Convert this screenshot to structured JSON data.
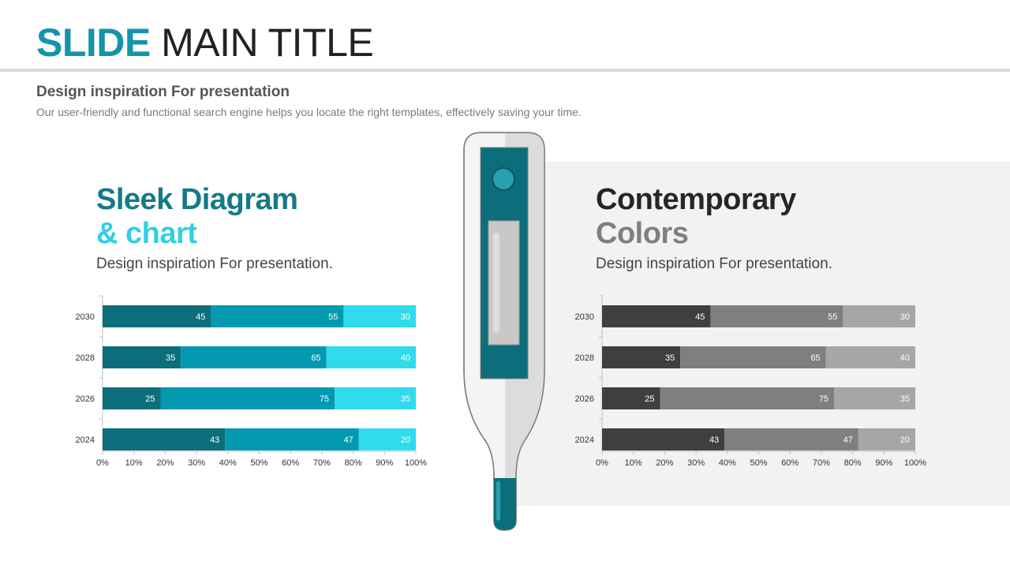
{
  "title": {
    "accent": "SLIDE",
    "rest": "MAIN TITLE"
  },
  "subtitle": "Design inspiration For presentation",
  "subtitle_desc": "Our user-friendly and functional search engine helps you locate the right templates, effectively saving your time.",
  "left_panel": {
    "heading_line1": "Sleek Diagram",
    "heading_line2": "& chart",
    "desc": "Design inspiration For presentation."
  },
  "right_panel": {
    "heading_line1": "Contemporary",
    "heading_line2": "Colors",
    "desc": "Design inspiration For presentation."
  },
  "colors": {
    "accent_title": "#1494a8",
    "teal_dark": "#0d6e7b",
    "teal_mid": "#0399b0",
    "teal_light": "#2fdbed",
    "heading_teal": "#147a86",
    "heading_cyan": "#31cfe3",
    "gray_dark": "#3f3f3f",
    "gray_mid": "#7f7f7f",
    "gray_light": "#a6a6a6",
    "heading_dark": "#262626",
    "heading_gray": "#7f7f7f"
  },
  "chart_data": [
    {
      "type": "bar",
      "orientation": "horizontal",
      "stacked": "percent",
      "categories": [
        "2030",
        "2028",
        "2026",
        "2024"
      ],
      "series": [
        {
          "values": [
            45,
            35,
            25,
            43
          ],
          "color": "#0d6e7b"
        },
        {
          "values": [
            55,
            65,
            75,
            47
          ],
          "color": "#0399b0"
        },
        {
          "values": [
            30,
            40,
            35,
            20
          ],
          "color": "#2fdbed"
        }
      ],
      "xticks": [
        "0%",
        "10%",
        "20%",
        "30%",
        "40%",
        "50%",
        "60%",
        "70%",
        "80%",
        "90%",
        "100%"
      ],
      "xlim": [
        0,
        100
      ],
      "grid": false
    },
    {
      "type": "bar",
      "orientation": "horizontal",
      "stacked": "percent",
      "categories": [
        "2030",
        "2028",
        "2026",
        "2024"
      ],
      "series": [
        {
          "values": [
            45,
            35,
            25,
            43
          ],
          "color": "#3f3f3f"
        },
        {
          "values": [
            55,
            65,
            75,
            47
          ],
          "color": "#7f7f7f"
        },
        {
          "values": [
            30,
            40,
            35,
            20
          ],
          "color": "#a6a6a6"
        }
      ],
      "xticks": [
        "0%",
        "10%",
        "20%",
        "30%",
        "40%",
        "50%",
        "60%",
        "70%",
        "80%",
        "90%",
        "100%"
      ],
      "xlim": [
        0,
        100
      ],
      "grid": false
    }
  ]
}
